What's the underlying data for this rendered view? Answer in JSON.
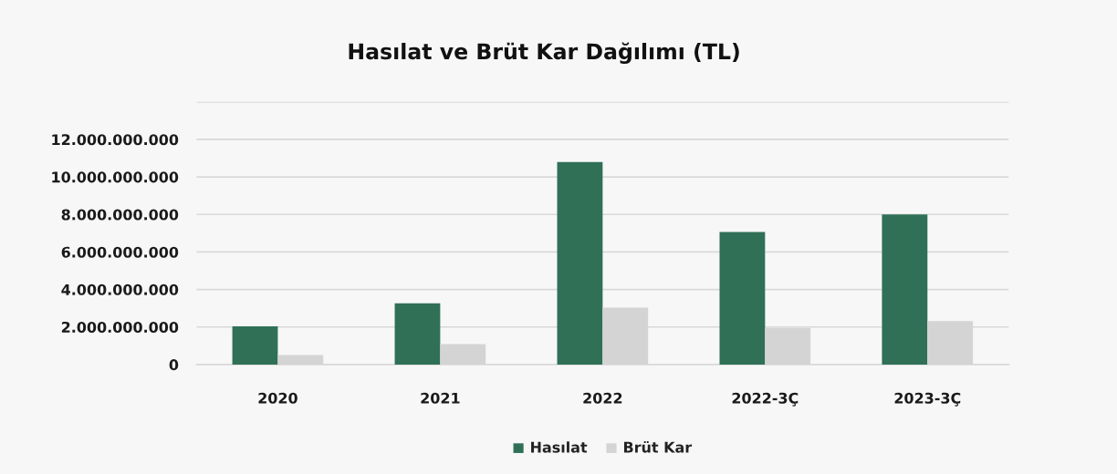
{
  "chart_data": {
    "type": "bar",
    "title": "Hasılat ve Brüt Kar Dağılımı (TL)",
    "categories": [
      "2020",
      "2021",
      "2022",
      "2022-3Ç",
      "2023-3Ç"
    ],
    "series": [
      {
        "name": "Hasılat",
        "color": "#2f7057",
        "values": [
          2040000000,
          3260000000,
          10800000000,
          7070000000,
          8000000000
        ]
      },
      {
        "name": "Brüt Kar",
        "color": "#d4d4d4",
        "values": [
          510000000,
          1090000000,
          3030000000,
          1950000000,
          2310000000
        ]
      }
    ],
    "ylim": [
      0,
      14000000000
    ],
    "yticks": [
      {
        "value": 0,
        "label": "0"
      },
      {
        "value": 2000000000,
        "label": "2.000.000.000"
      },
      {
        "value": 4000000000,
        "label": "4.000.000.000"
      },
      {
        "value": 6000000000,
        "label": "6.000.000.000"
      },
      {
        "value": 8000000000,
        "label": "8.000.000.000"
      },
      {
        "value": 10000000000,
        "label": "10.000.000.000"
      },
      {
        "value": 12000000000,
        "label": "12.000.000.000"
      },
      {
        "value": 14000000000,
        "label": null
      }
    ],
    "grid": "y",
    "legend": "bottom"
  }
}
